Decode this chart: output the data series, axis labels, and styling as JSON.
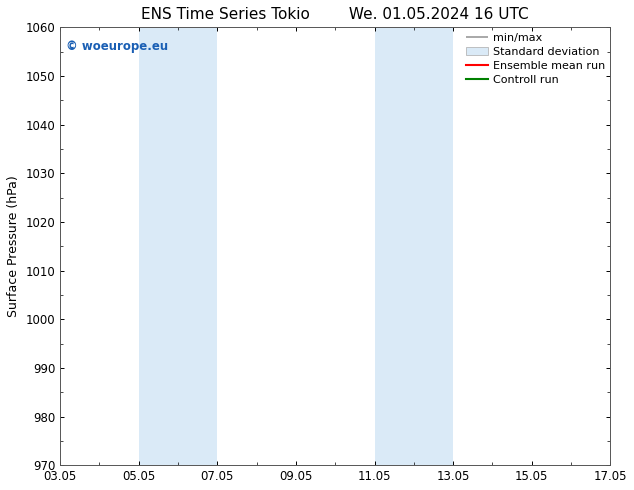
{
  "title": "ENS Time Series Tokio",
  "subtitle": "We. 01.05.2024 16 UTC",
  "ylabel": "Surface Pressure (hPa)",
  "ylim": [
    970,
    1060
  ],
  "yticks": [
    970,
    980,
    990,
    1000,
    1010,
    1020,
    1030,
    1040,
    1050,
    1060
  ],
  "xtick_labels": [
    "03.05",
    "05.05",
    "07.05",
    "09.05",
    "11.05",
    "13.05",
    "15.05",
    "17.05"
  ],
  "xtick_positions": [
    0,
    2,
    4,
    6,
    8,
    10,
    12,
    14
  ],
  "xlim": [
    0,
    14
  ],
  "shaded_bands": [
    {
      "x_start": 2.0,
      "x_end": 4.0
    },
    {
      "x_start": 8.0,
      "x_end": 10.0
    }
  ],
  "shade_color": "#daeaf7",
  "watermark_text": "© woeurope.eu",
  "watermark_color": "#1a5fb4",
  "legend_labels": [
    "min/max",
    "Standard deviation",
    "Ensemble mean run",
    "Controll run"
  ],
  "legend_colors": [
    "#aaaaaa",
    "#c8d8e8",
    "#ff0000",
    "#008000"
  ],
  "background_color": "#ffffff",
  "title_fontsize": 11,
  "axis_fontsize": 9,
  "tick_fontsize": 8.5,
  "legend_fontsize": 8
}
